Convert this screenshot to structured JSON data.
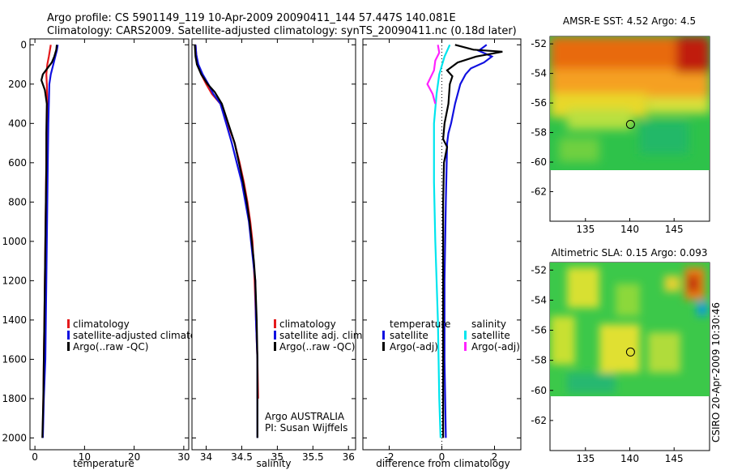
{
  "header": {
    "line1": "Argo profile: CS 5901149_119 10-Apr-2009 20090411_144 57.447S 140.081E",
    "line2": "Climatology: CARS2009. Satellite-adjusted climatology: synTS_20090411.nc (0.18d later)"
  },
  "side_label": "CSIRO 20-Apr-2009 10:30:46",
  "colors": {
    "red": "#e41a1c",
    "blue": "#1010e0",
    "black": "#000000",
    "cyan": "#00e5ee",
    "magenta": "#ff22ff"
  },
  "chart_data": [
    {
      "type": "line",
      "name": "temperature-panel",
      "xlabel": "temperature",
      "xlim": [
        -1,
        31
      ],
      "ylim": [
        2060,
        -30
      ],
      "y_reversed": true,
      "xticks": [
        0,
        10,
        20,
        30
      ],
      "yticks": [
        0,
        200,
        400,
        600,
        800,
        1000,
        1200,
        1400,
        1600,
        1800,
        2000
      ],
      "legend": [
        "climatology",
        "satellite-adjusted climatolog",
        "Argo(..raw -QC)"
      ],
      "series": [
        {
          "color": "red",
          "points": [
            [
              3.2,
              0
            ],
            [
              3.0,
              30
            ],
            [
              2.8,
              60
            ],
            [
              2.5,
              100
            ],
            [
              2.3,
              150
            ],
            [
              2.4,
              200
            ],
            [
              2.5,
              300
            ],
            [
              2.4,
              400
            ],
            [
              2.3,
              600
            ],
            [
              2.2,
              800
            ],
            [
              2.1,
              1000
            ],
            [
              2.0,
              1200
            ],
            [
              1.9,
              1400
            ],
            [
              1.8,
              1600
            ],
            [
              1.7,
              1800
            ],
            [
              1.6,
              1950
            ]
          ]
        },
        {
          "color": "blue",
          "points": [
            [
              4.6,
              0
            ],
            [
              4.4,
              30
            ],
            [
              4.0,
              70
            ],
            [
              3.6,
              110
            ],
            [
              3.2,
              150
            ],
            [
              2.9,
              200
            ],
            [
              2.8,
              300
            ],
            [
              2.7,
              400
            ],
            [
              2.6,
              600
            ],
            [
              2.5,
              800
            ],
            [
              2.4,
              1000
            ],
            [
              2.3,
              1200
            ],
            [
              2.2,
              1400
            ],
            [
              2.1,
              1600
            ],
            [
              1.8,
              1800
            ],
            [
              1.6,
              2000
            ]
          ]
        },
        {
          "color": "black",
          "points": [
            [
              4.4,
              0
            ],
            [
              4.3,
              25
            ],
            [
              3.9,
              60
            ],
            [
              3.4,
              90
            ],
            [
              2.5,
              120
            ],
            [
              1.6,
              150
            ],
            [
              1.3,
              180
            ],
            [
              2.0,
              230
            ],
            [
              2.4,
              300
            ],
            [
              2.3,
              450
            ],
            [
              2.3,
              600
            ],
            [
              2.2,
              800
            ],
            [
              2.1,
              1000
            ],
            [
              2.0,
              1200
            ],
            [
              1.9,
              1400
            ],
            [
              1.8,
              1600
            ],
            [
              1.7,
              1800
            ],
            [
              1.5,
              2000
            ]
          ]
        }
      ]
    },
    {
      "type": "line",
      "name": "salinity-panel",
      "xlabel": "salinity",
      "xlim": [
        33.8,
        36.1
      ],
      "ylim": [
        2060,
        -30
      ],
      "y_reversed": true,
      "xticks": [
        34,
        34.5,
        35,
        35.5,
        36
      ],
      "legend": [
        "climatology",
        "satellite adj. clim.",
        "Argo(..raw -QC)"
      ],
      "annotation": [
        "Argo AUSTRALIA",
        "PI: Susan Wijffels"
      ],
      "series": [
        {
          "color": "red",
          "points": [
            [
              33.85,
              0
            ],
            [
              33.86,
              50
            ],
            [
              33.88,
              100
            ],
            [
              33.93,
              150
            ],
            [
              34.0,
              200
            ],
            [
              34.08,
              250
            ],
            [
              34.2,
              300
            ],
            [
              34.3,
              400
            ],
            [
              34.4,
              500
            ],
            [
              34.47,
              600
            ],
            [
              34.53,
              700
            ],
            [
              34.58,
              800
            ],
            [
              34.62,
              900
            ],
            [
              34.65,
              1000
            ],
            [
              34.68,
              1200
            ],
            [
              34.7,
              1400
            ],
            [
              34.72,
              1600
            ],
            [
              34.73,
              1800
            ]
          ]
        },
        {
          "color": "blue",
          "points": [
            [
              33.85,
              0
            ],
            [
              33.86,
              50
            ],
            [
              33.89,
              100
            ],
            [
              33.95,
              150
            ],
            [
              34.03,
              200
            ],
            [
              34.1,
              250
            ],
            [
              34.2,
              300
            ],
            [
              34.28,
              400
            ],
            [
              34.36,
              500
            ],
            [
              34.43,
              600
            ],
            [
              34.5,
              700
            ],
            [
              34.55,
              800
            ],
            [
              34.6,
              900
            ],
            [
              34.63,
              1000
            ],
            [
              34.66,
              1100
            ],
            [
              34.69,
              1200
            ],
            [
              34.7,
              1400
            ],
            [
              34.72,
              1600
            ],
            [
              34.72,
              1800
            ],
            [
              34.72,
              2000
            ]
          ]
        },
        {
          "color": "black",
          "points": [
            [
              33.84,
              0
            ],
            [
              33.85,
              60
            ],
            [
              33.87,
              100
            ],
            [
              33.93,
              150
            ],
            [
              34.02,
              200
            ],
            [
              34.12,
              240
            ],
            [
              34.22,
              300
            ],
            [
              34.31,
              400
            ],
            [
              34.4,
              500
            ],
            [
              34.46,
              600
            ],
            [
              34.52,
              700
            ],
            [
              34.57,
              800
            ],
            [
              34.61,
              900
            ],
            [
              34.64,
              1000
            ],
            [
              34.67,
              1100
            ],
            [
              34.69,
              1200
            ],
            [
              34.71,
              1400
            ],
            [
              34.72,
              1600
            ],
            [
              34.72,
              1800
            ],
            [
              34.72,
              2000
            ]
          ]
        }
      ]
    },
    {
      "type": "line",
      "name": "difference-panel",
      "xlabel": "difference from climatology",
      "xlim": [
        -3,
        3
      ],
      "ylim": [
        2060,
        -30
      ],
      "y_reversed": true,
      "xticks": [
        -2,
        0,
        2
      ],
      "legend_temp_title": "temperature",
      "legend_sal_title": "salinity",
      "legend_temp": [
        "satellite",
        "Argo(-adj)"
      ],
      "legend_sal": [
        "satellite",
        "Argo(-adj)"
      ],
      "series": [
        {
          "color": "blue",
          "points": [
            [
              1.7,
              0
            ],
            [
              1.4,
              30
            ],
            [
              1.9,
              60
            ],
            [
              1.6,
              90
            ],
            [
              1.1,
              120
            ],
            [
              0.9,
              150
            ],
            [
              0.7,
              200
            ],
            [
              0.5,
              300
            ],
            [
              0.35,
              400
            ],
            [
              0.25,
              450
            ],
            [
              0.2,
              500
            ],
            [
              0.15,
              800
            ],
            [
              0.1,
              1200
            ],
            [
              0.1,
              1600
            ],
            [
              0.15,
              2000
            ]
          ]
        },
        {
          "color": "black",
          "points": [
            [
              0.5,
              0
            ],
            [
              1.2,
              25
            ],
            [
              2.3,
              35
            ],
            [
              1.3,
              60
            ],
            [
              0.6,
              90
            ],
            [
              0.2,
              130
            ],
            [
              0.4,
              160
            ],
            [
              0.3,
              200
            ],
            [
              0.25,
              300
            ],
            [
              0.1,
              400
            ],
            [
              0.05,
              480
            ],
            [
              0.2,
              520
            ],
            [
              0.08,
              600
            ],
            [
              0.05,
              800
            ],
            [
              0.05,
              1200
            ],
            [
              0.05,
              1600
            ],
            [
              0.05,
              2000
            ]
          ]
        },
        {
          "color": "cyan",
          "points": [
            [
              0.3,
              0
            ],
            [
              0.1,
              60
            ],
            [
              -0.1,
              150
            ],
            [
              -0.2,
              250
            ],
            [
              -0.3,
              400
            ],
            [
              -0.3,
              700
            ],
            [
              -0.25,
              1000
            ],
            [
              -0.15,
              1400
            ],
            [
              -0.1,
              1800
            ],
            [
              -0.05,
              2000
            ]
          ]
        },
        {
          "color": "magenta",
          "points": [
            [
              -0.15,
              0
            ],
            [
              -0.1,
              40
            ],
            [
              -0.25,
              80
            ],
            [
              -0.3,
              130
            ],
            [
              -0.55,
              200
            ],
            [
              -0.35,
              250
            ],
            [
              -0.25,
              300
            ]
          ]
        }
      ]
    },
    {
      "type": "heatmap",
      "name": "sst-map",
      "title": "AMSR-E SST: 4.52 Argo: 4.5",
      "xlim": [
        131,
        149
      ],
      "ylim": [
        -64,
        -51.5
      ],
      "xticks": [
        135,
        140,
        145
      ],
      "yticks": [
        -52,
        -54,
        -56,
        -58,
        -60,
        -62
      ],
      "marker": [
        140.081,
        -57.447
      ]
    },
    {
      "type": "heatmap",
      "name": "sla-map",
      "title": "Altimetric SLA: 0.15 Argo: 0.093",
      "xlim": [
        131,
        149
      ],
      "ylim": [
        -64,
        -51.5
      ],
      "xticks": [
        135,
        140,
        145
      ],
      "yticks": [
        -52,
        -54,
        -56,
        -58,
        -60,
        -62
      ],
      "marker": [
        140.081,
        -57.447
      ]
    }
  ]
}
